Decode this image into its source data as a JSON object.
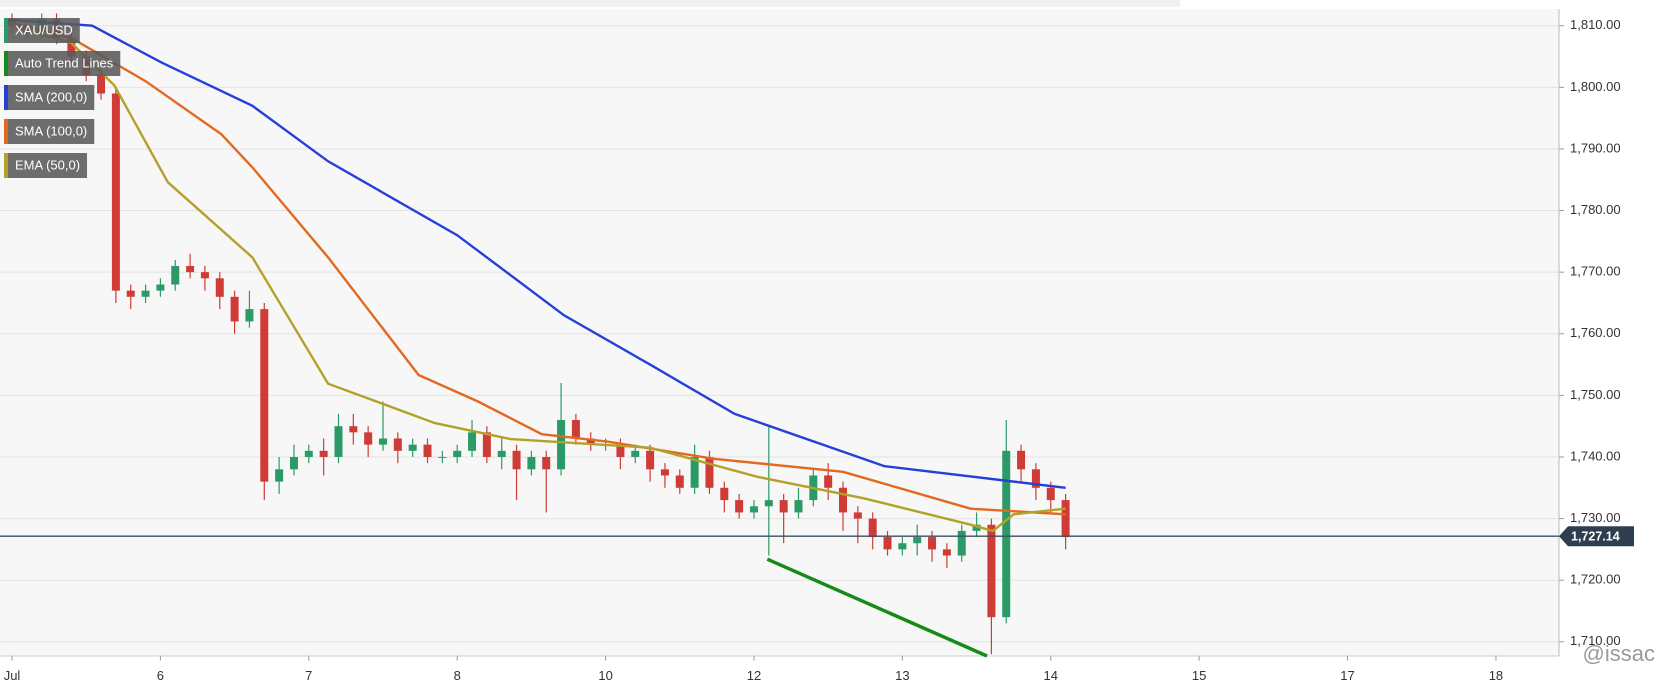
{
  "chart_data": {
    "type": "candlestick",
    "instrument": "XAU/USD",
    "up_color": "#2b9a66",
    "down_color": "#cf3b36",
    "candles": {
      "x": [
        0,
        0.1,
        0.2,
        0.3,
        0.4,
        0.5,
        0.6,
        0.7,
        0.8,
        0.9,
        1,
        1.1,
        1.2,
        1.3,
        1.4,
        1.5,
        1.6,
        1.7,
        1.8,
        1.9,
        2,
        2.1,
        2.2,
        2.3,
        2.4,
        2.5,
        2.6,
        2.7,
        2.8,
        2.9,
        3,
        3.1,
        3.2,
        3.3,
        3.4,
        3.5,
        3.6,
        3.7,
        3.8,
        3.9,
        4,
        4.1,
        4.2,
        4.3,
        4.4,
        4.5,
        4.6,
        4.7,
        4.8,
        4.9,
        5,
        5.1,
        5.2,
        5.3,
        5.4,
        5.5,
        5.6,
        5.7,
        5.8,
        5.9,
        6,
        6.1,
        6.2,
        6.3,
        6.4,
        6.5,
        6.6,
        6.7,
        6.8,
        6.9,
        7,
        7.1
      ],
      "open": [
        1811,
        1810,
        1809,
        1811,
        1808,
        1805,
        1802,
        1799,
        1767,
        1766,
        1767,
        1768,
        1771,
        1770,
        1769,
        1766,
        1762,
        1764,
        1736,
        1738,
        1740,
        1741,
        1740,
        1745,
        1744,
        1742,
        1743,
        1741,
        1742,
        1740,
        1740,
        1741,
        1744,
        1740,
        1741,
        1738,
        1740,
        1738,
        1746,
        1743,
        1742,
        1742,
        1740,
        1741,
        1738,
        1737,
        1735,
        1740,
        1735,
        1733,
        1731,
        1732,
        1733,
        1731,
        1733,
        1737,
        1735,
        1731,
        1730,
        1727,
        1725,
        1726,
        1727,
        1725,
        1724,
        1728,
        1729,
        1714,
        1741,
        1738,
        1735,
        1733
      ],
      "high": [
        1812,
        1811,
        1812,
        1812,
        1809,
        1806,
        1803,
        1800,
        1768,
        1768,
        1769,
        1772,
        1773,
        1771,
        1770,
        1767,
        1767,
        1765,
        1740,
        1742,
        1742,
        1743,
        1747,
        1747,
        1745,
        1749,
        1744,
        1743,
        1743,
        1741,
        1742,
        1746,
        1745,
        1743,
        1742,
        1741,
        1741,
        1752,
        1747,
        1744,
        1743,
        1743,
        1742,
        1742,
        1739,
        1738,
        1742,
        1741,
        1736,
        1734,
        1733,
        1745,
        1734,
        1735,
        1738,
        1739,
        1736,
        1732,
        1731,
        1728,
        1727,
        1729,
        1728,
        1726,
        1729,
        1731,
        1730,
        1746,
        1742,
        1739,
        1736,
        1734
      ],
      "low": [
        1809,
        1808,
        1808,
        1807,
        1804,
        1801,
        1798,
        1765,
        1764,
        1765,
        1766,
        1767,
        1769,
        1767,
        1764,
        1760,
        1761,
        1733,
        1734,
        1737,
        1739,
        1737,
        1739,
        1742,
        1740,
        1741,
        1739,
        1740,
        1739,
        1739,
        1739,
        1740,
        1739,
        1738,
        1733,
        1737,
        1731,
        1737,
        1742,
        1741,
        1741,
        1738,
        1739,
        1736,
        1735,
        1734,
        1734,
        1734,
        1731,
        1730,
        1730,
        1724,
        1726,
        1730,
        1732,
        1733,
        1728,
        1726,
        1725,
        1724,
        1724,
        1724,
        1723,
        1722,
        1723,
        1727,
        1708,
        1713,
        1736,
        1733,
        1731,
        1725
      ],
      "close": [
        1810,
        1809,
        1811,
        1808,
        1805,
        1802,
        1799,
        1767,
        1766,
        1767,
        1768,
        1771,
        1770,
        1769,
        1766,
        1762,
        1764,
        1736,
        1738,
        1740,
        1741,
        1740,
        1745,
        1744,
        1742,
        1743,
        1741,
        1742,
        1740,
        1740,
        1741,
        1744,
        1740,
        1741,
        1738,
        1740,
        1738,
        1746,
        1743,
        1742,
        1742,
        1740,
        1741,
        1738,
        1737,
        1735,
        1740,
        1735,
        1733,
        1731,
        1732,
        1733,
        1731,
        1733,
        1737,
        1735,
        1731,
        1730,
        1727,
        1725,
        1726,
        1727,
        1725,
        1724,
        1728,
        1729,
        1714,
        1741,
        1738,
        1735,
        1733,
        1727
      ]
    },
    "series": [
      {
        "name": "SMA (200,0)",
        "color": "#2440d8",
        "x": [
          -0.04,
          0.54,
          1.01,
          1.62,
          2.13,
          3.0,
          3.72,
          4.3,
          4.87,
          5.88,
          7.1
        ],
        "values": [
          1811,
          1810,
          1804,
          1797,
          1788,
          1776,
          1763,
          1755,
          1747,
          1738.5,
          1735
        ]
      },
      {
        "name": "SMA (100,0)",
        "color": "#e2691f",
        "x": [
          -0.04,
          0.4,
          0.9,
          1.41,
          1.62,
          2.13,
          2.74,
          3.14,
          3.57,
          4.01,
          4.73,
          5.6,
          6.46,
          7.1
        ],
        "values": [
          1810.7,
          1808,
          1801,
          1792.4,
          1787,
          1772.4,
          1753.3,
          1749,
          1743.7,
          1742.5,
          1739.7,
          1737.6,
          1731.6,
          1730.7
        ]
      },
      {
        "name": "EMA (50,0)",
        "color": "#b3a12a",
        "x": [
          -0.04,
          0.4,
          0.69,
          1.05,
          1.62,
          2.13,
          2.85,
          3.36,
          4.3,
          5.02,
          5.74,
          6.46,
          6.61,
          6.75,
          7.1
        ],
        "values": [
          1810.3,
          1807.2,
          1800.3,
          1784.6,
          1772.4,
          1751.9,
          1745.5,
          1742.9,
          1741.5,
          1736.8,
          1733.3,
          1729,
          1728,
          1730.7,
          1731.6
        ]
      },
      {
        "name": "Auto Trend Lines",
        "color": "#178a17",
        "x": [
          5.09,
          6.57
        ],
        "values": [
          1723.4,
          1707.7
        ]
      }
    ],
    "legend_order": [
      "XAU/USD",
      "Auto Trend Lines",
      "SMA (200,0)",
      "SMA (100,0)",
      "EMA (50,0)"
    ],
    "last_price": {
      "value": 1727.14,
      "label": "1,727.14"
    },
    "xlim": [
      -0.081,
      10.425
    ],
    "xticks": [
      {
        "value": 0,
        "label": "Jul"
      },
      {
        "value": 1,
        "label": "6"
      },
      {
        "value": 2,
        "label": "7"
      },
      {
        "value": 3,
        "label": "8"
      },
      {
        "value": 4,
        "label": "10"
      },
      {
        "value": 5,
        "label": "12"
      },
      {
        "value": 6,
        "label": "13"
      },
      {
        "value": 7,
        "label": "14"
      },
      {
        "value": 8,
        "label": "15"
      },
      {
        "value": 9,
        "label": "17"
      },
      {
        "value": 10,
        "label": "18"
      }
    ],
    "ylim": [
      1707.76,
      1812.78
    ],
    "yticks": [
      {
        "value": 1710,
        "label": "1,710.00"
      },
      {
        "value": 1720,
        "label": "1,720.00"
      },
      {
        "value": 1730,
        "label": "1,730.00"
      },
      {
        "value": 1740,
        "label": "1,740.00"
      },
      {
        "value": 1750,
        "label": "1,750.00"
      },
      {
        "value": 1760,
        "label": "1,760.00"
      },
      {
        "value": 1770,
        "label": "1,770.00"
      },
      {
        "value": 1780,
        "label": "1,780.00"
      },
      {
        "value": 1790,
        "label": "1,790.00"
      },
      {
        "value": 1800,
        "label": "1,800.00"
      },
      {
        "value": 1810,
        "label": "1,810.00"
      }
    ],
    "grid": true,
    "watermark": "@issac"
  }
}
